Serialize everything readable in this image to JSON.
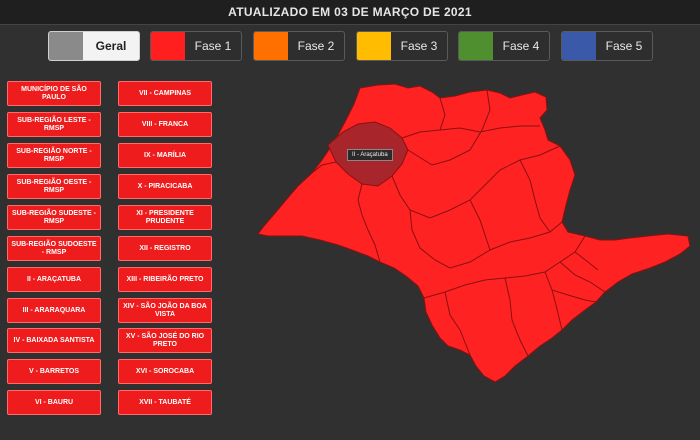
{
  "header": {
    "title": "ATUALIZADO EM 03 DE MARÇO DE 2021"
  },
  "legend": [
    {
      "label": "Geral",
      "color": "#8a8a8a"
    },
    {
      "label": "Fase 1",
      "color": "#ff1f1f"
    },
    {
      "label": "Fase 2",
      "color": "#ff7000"
    },
    {
      "label": "Fase 3",
      "color": "#ffbc00"
    },
    {
      "label": "Fase 4",
      "color": "#4f8f2f"
    },
    {
      "label": "Fase 5",
      "color": "#3a59a8"
    }
  ],
  "regions_left": [
    "MUNICÍPIO DE SÃO PAULO",
    "SUB-REGIÃO LESTE - RMSP",
    "SUB-REGIÃO NORTE - RMSP",
    "SUB-REGIÃO OESTE - RMSP",
    "SUB-REGIÃO SUDESTE - RMSP",
    "SUB-REGIÃO SUDOESTE - RMSP",
    "II - ARAÇATUBA",
    "III - ARARAQUARA",
    "IV - BAIXADA SANTISTA",
    "V - BARRETOS",
    "VI - BAURU"
  ],
  "regions_right": [
    "VII - CAMPINAS",
    "VIII - FRANCA",
    "IX - MARÍLIA",
    "X - PIRACICABA",
    "XI - PRESIDENTE PRUDENTE",
    "XII - REGISTRO",
    "XIII - RIBEIRÃO PRETO",
    "XIV - SÃO JOÃO DA BOA VISTA",
    "XV - SÃO JOSÉ DO RIO PRETO",
    "XVI - SOROCABA",
    "XVII - TAUBATÉ"
  ],
  "map": {
    "fill_color": "#ff2222",
    "highlight_color": "#a8262b",
    "border_color": "#8b1010",
    "tooltip": "II - Araçatuba"
  }
}
